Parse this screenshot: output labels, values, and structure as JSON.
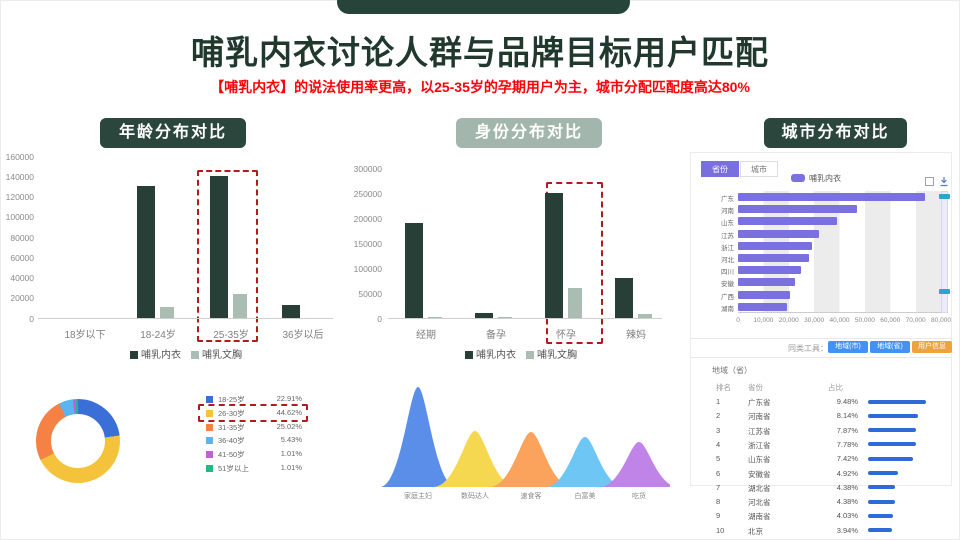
{
  "header": {
    "title": "哺乳内衣讨论人群与品牌目标用户匹配",
    "subtitle": "【哺乳内衣】的说法使用率更高，以25-35岁的孕期用户为主，城市分配匹配度高达80%"
  },
  "sections": {
    "age_badge": "年龄分布对比",
    "identity_badge": "身份分布对比",
    "city_badge": "城市分布对比"
  },
  "colors": {
    "dark_green": "#2b463c",
    "sage": "#a2b6ad",
    "series_dark": "#273f37",
    "series_light": "#a9bdb3",
    "highlight_red": "#b21b1b",
    "purple": "#7b70e0",
    "blue_button": "#4292f5",
    "orange_button": "#f0a23d",
    "table_bar": "#2e6bd8"
  },
  "chart_data": [
    {
      "id": "age",
      "type": "bar",
      "title": "年龄分布对比",
      "categories": [
        "18岁以下",
        "18-24岁",
        "25-35岁",
        "36岁以后"
      ],
      "series": [
        {
          "name": "哺乳内衣",
          "color": "#273f37",
          "values": [
            0,
            130000,
            140000,
            13000
          ]
        },
        {
          "name": "哺乳文胸",
          "color": "#a9bdb3",
          "values": [
            0,
            11000,
            24000,
            0
          ]
        }
      ],
      "ylim": [
        0,
        160000
      ],
      "ytick_step": 20000,
      "highlight_category": "25-35岁",
      "legend_position": "bottom"
    },
    {
      "id": "identity",
      "type": "bar",
      "title": "身份分布对比",
      "categories": [
        "经期",
        "备孕",
        "怀孕",
        "辣妈"
      ],
      "series": [
        {
          "name": "哺乳内衣",
          "color": "#273f37",
          "values": [
            190000,
            11000,
            250000,
            80000
          ]
        },
        {
          "name": "哺乳文胸",
          "color": "#a9bdb3",
          "values": [
            3000,
            3000,
            60000,
            9000
          ]
        }
      ],
      "ylim": [
        0,
        300000
      ],
      "ytick_step": 50000,
      "highlight_category": "怀孕",
      "legend_position": "bottom"
    },
    {
      "id": "city",
      "type": "bar",
      "orientation": "horizontal",
      "title": "城市分布对比",
      "tabs": [
        "省份",
        "城市"
      ],
      "active_tab": "省份",
      "legend": "哺乳内衣",
      "categories": [
        "广东",
        "河南",
        "山东",
        "江苏",
        "浙江",
        "河北",
        "四川",
        "安徽",
        "广西",
        "湖南"
      ],
      "values": [
        73500,
        47000,
        39000,
        32000,
        29000,
        28000,
        25000,
        22500,
        20500,
        19500
      ],
      "xlim": [
        0,
        80000
      ],
      "xtick_labels": [
        "0",
        "10,000",
        "20,000",
        "30,000",
        "40,000",
        "50,000",
        "60,000",
        "70,000",
        "80,000"
      ]
    },
    {
      "id": "age_donut",
      "type": "pie",
      "slices": [
        {
          "label": "18-25岁",
          "value": 22.91,
          "pct": "22.91%",
          "color": "#3a6fd8"
        },
        {
          "label": "26-30岁",
          "value": 44.62,
          "pct": "44.62%",
          "color": "#f5c33b"
        },
        {
          "label": "31-35岁",
          "value": 25.02,
          "pct": "25.02%",
          "color": "#f58144"
        },
        {
          "label": "36-40岁",
          "value": 5.43,
          "pct": "5.43%",
          "color": "#5ab4f0"
        },
        {
          "label": "41-50岁",
          "value": 1.01,
          "pct": "1.01%",
          "color": "#c45fd6"
        },
        {
          "label": "51岁以上",
          "value": 1.01,
          "pct": "1.01%",
          "color": "#22b88a"
        }
      ],
      "highlight": "26-30岁"
    },
    {
      "id": "persona_peaks",
      "type": "area",
      "peaks": [
        {
          "label": "家庭主妇",
          "height": 100,
          "color": "#5b8ee8"
        },
        {
          "label": "数码达人",
          "height": 56,
          "color": "#f5d84f"
        },
        {
          "label": "速食客",
          "height": 55,
          "color": "#fba35c"
        },
        {
          "label": "白富美",
          "height": 50,
          "color": "#6ec6f5"
        },
        {
          "label": "吃货",
          "height": 45,
          "color": "#c083e8"
        }
      ]
    },
    {
      "id": "region_table",
      "type": "table",
      "title": "地域（省）",
      "columns": [
        "排名",
        "省份",
        "占比"
      ],
      "rows": [
        {
          "rank": "1",
          "province": "广东省",
          "pct": "9.48%",
          "value": 9.48
        },
        {
          "rank": "2",
          "province": "河南省",
          "pct": "8.14%",
          "value": 8.14
        },
        {
          "rank": "3",
          "province": "江苏省",
          "pct": "7.87%",
          "value": 7.87
        },
        {
          "rank": "4",
          "province": "浙江省",
          "pct": "7.78%",
          "value": 7.78
        },
        {
          "rank": "5",
          "province": "山东省",
          "pct": "7.42%",
          "value": 7.42
        },
        {
          "rank": "6",
          "province": "安徽省",
          "pct": "4.92%",
          "value": 4.92
        },
        {
          "rank": "7",
          "province": "湖北省",
          "pct": "4.38%",
          "value": 4.38
        },
        {
          "rank": "8",
          "province": "河北省",
          "pct": "4.38%",
          "value": 4.38
        },
        {
          "rank": "9",
          "province": "湖南省",
          "pct": "4.03%",
          "value": 4.03
        },
        {
          "rank": "10",
          "province": "北京",
          "pct": "3.94%",
          "value": 3.94
        }
      ]
    }
  ],
  "tools": {
    "label": "同类工具：",
    "buttons": [
      "地域(市)",
      "地域(省)",
      "用户信息"
    ]
  }
}
